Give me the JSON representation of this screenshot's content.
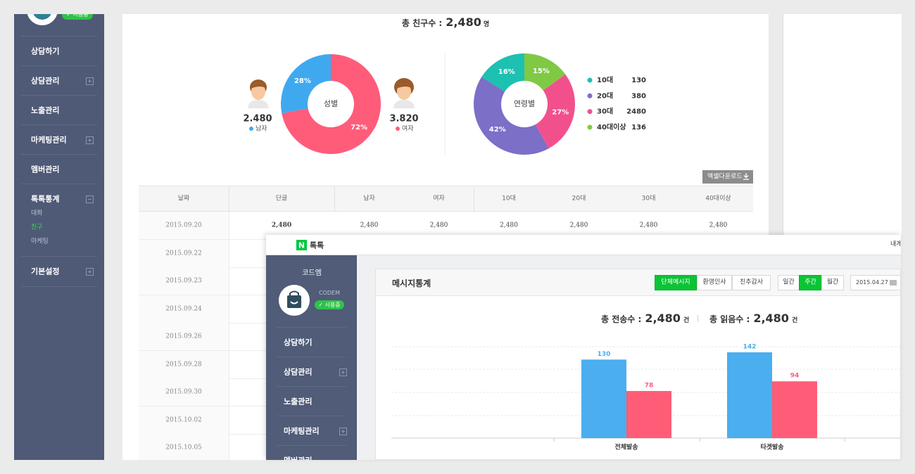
{
  "sidebar": {
    "badge": "✓ 사용중",
    "menu": [
      "상담하기",
      "상담관리",
      "노출관리",
      "마케팅관리",
      "멤버관리",
      "톡톡통계",
      "기본설정"
    ],
    "submenu": [
      "대화",
      "친구",
      "마케팅"
    ]
  },
  "friends_panel": {
    "total_label": "총 친구수 :",
    "total": "2,480",
    "total_unit": "명",
    "gender_chart": {
      "type": "pie",
      "center_label": "성별",
      "categories": [
        "남자",
        "여자"
      ],
      "values": [
        28,
        72
      ],
      "value_labels": [
        "28%",
        "72%"
      ],
      "count_labels": [
        "2.480",
        "3.820"
      ],
      "colors": [
        "#3fa9f0",
        "#ff5c7a"
      ],
      "direction": "counterclockwise"
    },
    "age_chart": {
      "type": "pie",
      "center_label": "연령별",
      "categories": [
        "10대",
        "20대",
        "30대",
        "40대이상"
      ],
      "values": [
        16,
        42,
        27,
        15
      ],
      "value_labels": [
        "16%",
        "42%",
        "27%",
        "15%"
      ],
      "counts": [
        130,
        380,
        2480,
        136
      ],
      "colors": [
        "#1cc1b1",
        "#7b6fc8",
        "#f2508d",
        "#80c944"
      ],
      "direction": "counterclockwise"
    },
    "excel_button": "엑셀다운로드",
    "table": {
      "header": [
        "날짜",
        "단골",
        "남자",
        "여자",
        "10대",
        "20대",
        "30대",
        "40대이상"
      ],
      "rows": [
        [
          "2015.09.20",
          "2,480",
          "2,480",
          "2,480",
          "2,480",
          "2,480",
          "2,480",
          "2,480"
        ],
        [
          "2015.09.22"
        ],
        [
          "2015.09.23"
        ],
        [
          "2015.09.24"
        ],
        [
          "2015.09.26"
        ],
        [
          "2015.09.28"
        ],
        [
          "2015.09.30"
        ],
        [
          "2015.10.02"
        ],
        [
          "2015.10.05"
        ]
      ]
    }
  },
  "overlay": {
    "logo": "N",
    "brand": "톡톡",
    "top_right": "내게",
    "profile_name": "코드엠",
    "profile_id": "CODEM",
    "badge": "✓ 사용중",
    "menu": [
      "상담하기",
      "상담관리",
      "노출관리",
      "마케팅관리",
      "멤버관리"
    ],
    "panel_title": "메시지통계",
    "message_tabs": [
      "단체메시지",
      "환영인사",
      "친추감사"
    ],
    "period_tabs": [
      "일간",
      "주간",
      "월간"
    ],
    "date": "2015.04.27",
    "sent_label": "총 전송수 :",
    "sent_total": "2,480",
    "sent_unit": "건",
    "read_label": "총 읽음수 :",
    "read_total": "2,480",
    "read_unit": "건",
    "chart": {
      "type": "bar",
      "categories": [
        "전체발송",
        "타겟발송"
      ],
      "series": [
        {
          "color": "#4aaeef",
          "values": [
            130,
            142
          ]
        },
        {
          "color": "#ff5d77",
          "values": [
            78,
            94
          ]
        }
      ],
      "grid": true
    }
  }
}
